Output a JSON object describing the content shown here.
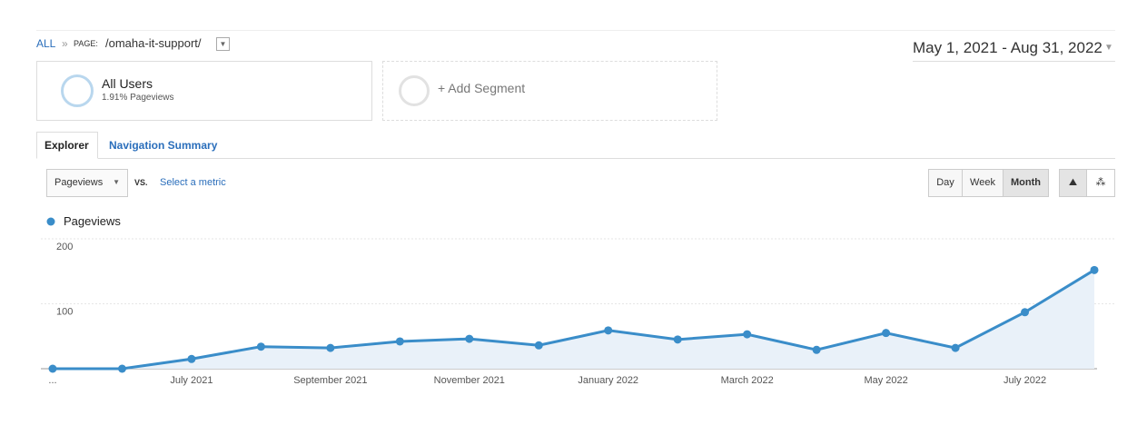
{
  "breadcrumb": {
    "all": "ALL",
    "separator": "»",
    "page_label": "PAGE:",
    "page": "/omaha-it-support/"
  },
  "date_range": "May 1, 2021 - Aug 31, 2022",
  "segments": [
    {
      "name": "All Users",
      "detail": "1.91% Pageviews"
    },
    {
      "name": "+ Add Segment"
    }
  ],
  "tabs": [
    "Explorer",
    "Navigation Summary"
  ],
  "metric": {
    "selected": "Pageviews",
    "vs": "VS.",
    "select": "Select a metric"
  },
  "granularity": [
    "Day",
    "Week",
    "Month"
  ],
  "chart_data": {
    "type": "line",
    "categories": [
      "...",
      null,
      "July 2021",
      null,
      "September 2021",
      null,
      "November 2021",
      null,
      "January 2022",
      null,
      "March 2022",
      null,
      "May 2022",
      null,
      "July 2022",
      null
    ],
    "series": [
      {
        "name": "Pageviews",
        "color": "#3a8dc9",
        "values": [
          0,
          0,
          15,
          34,
          32,
          42,
          46,
          36,
          59,
          45,
          53,
          29,
          55,
          32,
          87,
          152
        ]
      }
    ],
    "ylim": [
      0,
      200
    ],
    "yticks": [
      100,
      200
    ],
    "grid": true,
    "area": true
  }
}
